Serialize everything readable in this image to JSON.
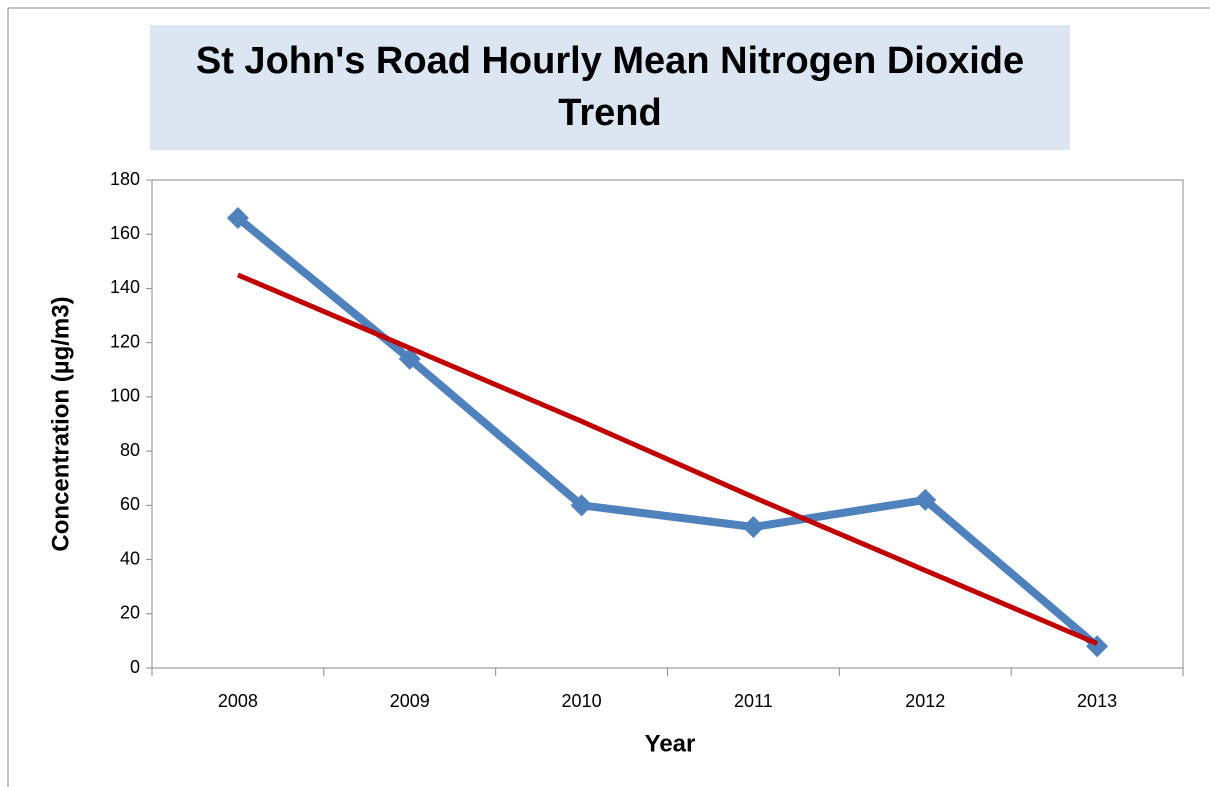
{
  "chart_data": {
    "type": "line",
    "title": "St John's Road Hourly Mean Nitrogen Dioxide Trend",
    "xlabel": "Year",
    "ylabel": "Concentration (µg/m3)",
    "categories": [
      "2008",
      "2009",
      "2010",
      "2011",
      "2012",
      "2013"
    ],
    "series": [
      {
        "color": "#4f81bd",
        "values": [
          166,
          114,
          60,
          52,
          62,
          8
        ],
        "marker": "diamond"
      },
      {
        "color": "#c00000",
        "values": [
          145,
          118,
          91,
          63,
          36,
          9
        ]
      }
    ],
    "ylim": [
      0,
      180
    ],
    "yticks": [
      0,
      20,
      40,
      60,
      80,
      100,
      120,
      140,
      160,
      180
    ],
    "grid": false
  }
}
